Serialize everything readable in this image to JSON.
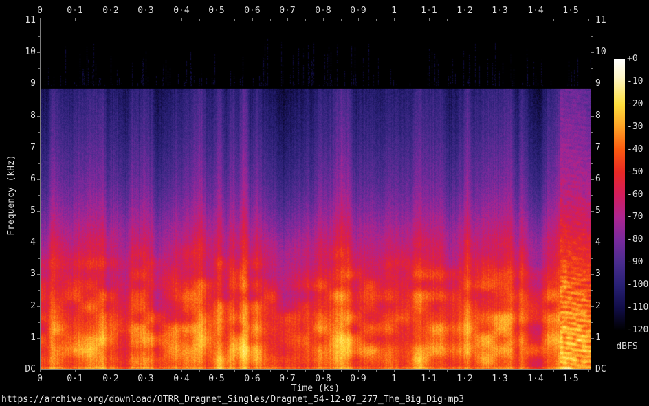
{
  "footer": {
    "url": "https://archive·org/download/OTRR_Dragnet_Singles/Dragnet_54-12-07_277_The_Big_Dig·mp3"
  },
  "chart_data": {
    "type": "heatmap",
    "subtype": "audio-spectrogram",
    "title": "https://archive·org/download/OTRR_Dragnet_Singles/Dragnet_54-12-07_277_The_Big_Dig·mp3",
    "xlabel": "Time (ks)",
    "ylabel": "Frequency (kHz)",
    "xlim": [
      0,
      1.558
    ],
    "ylim": [
      0,
      11
    ],
    "grid": false,
    "legend_position": "none",
    "x_major_ticks": {
      "start": 0,
      "step_ks": 0.1,
      "labels": [
        "0",
        "0·1",
        "0·2",
        "0·3",
        "0·4",
        "0·5",
        "0·6",
        "0·7",
        "0·8",
        "0·9",
        "1",
        "1·1",
        "1·2",
        "1·3",
        "1·4",
        "1·5"
      ],
      "shown_on": [
        "top",
        "bottom"
      ],
      "minor_step_ks": 0.05
    },
    "y_major_ticks": {
      "labels_top_to_bottom": [
        "11",
        "10",
        "9",
        "8",
        "7",
        "6",
        "5",
        "4",
        "3",
        "2",
        "1",
        "DC"
      ],
      "shown_on": [
        "left",
        "right"
      ],
      "minor_step_khz": 0.5
    },
    "colorbar": {
      "label": "dBFS",
      "max_db": 0,
      "min_db": -120,
      "tick_labels": [
        "+0",
        "-10",
        "-20",
        "-30",
        "-40",
        "-50",
        "-60",
        "-70",
        "-80",
        "-90",
        "-100",
        "-110",
        "-120"
      ],
      "palette_stops": [
        {
          "db": 0,
          "color": "#ffffff"
        },
        {
          "db": -8,
          "color": "#fff7c9"
        },
        {
          "db": -20,
          "color": "#ffdf3e"
        },
        {
          "db": -30,
          "color": "#ffa226"
        },
        {
          "db": -40,
          "color": "#fb5a10"
        },
        {
          "db": -50,
          "color": "#e92924"
        },
        {
          "db": -60,
          "color": "#d31d5c"
        },
        {
          "db": -70,
          "color": "#ad2590"
        },
        {
          "db": -80,
          "color": "#792a9d"
        },
        {
          "db": -90,
          "color": "#4a2c8e"
        },
        {
          "db": -100,
          "color": "#282075"
        },
        {
          "db": -110,
          "color": "#110d48"
        },
        {
          "db": -120,
          "color": "#000000"
        }
      ]
    },
    "content_model": {
      "comment": "Parameters describing the visible spectrogram content, used to regenerate the heatmap texture",
      "mp3_cutoff_khz": 8.87,
      "hiss_dash_band_khz": [
        8.95,
        10.45
      ],
      "music_outro_start_ks": 1.47,
      "bottom_dc_line_boost_db": 8,
      "freq_profile_db": [
        [
          0.0,
          -42
        ],
        [
          0.05,
          -40
        ],
        [
          0.3,
          -36
        ],
        [
          0.7,
          -36
        ],
        [
          1.0,
          -38
        ],
        [
          1.5,
          -41
        ],
        [
          2.0,
          -44
        ],
        [
          2.5,
          -48
        ],
        [
          3.0,
          -52
        ],
        [
          3.5,
          -57
        ],
        [
          4.0,
          -62
        ],
        [
          4.5,
          -68
        ],
        [
          5.0,
          -74
        ],
        [
          5.5,
          -79
        ],
        [
          6.0,
          -83
        ],
        [
          6.5,
          -86
        ],
        [
          7.0,
          -89
        ],
        [
          7.5,
          -92
        ],
        [
          8.0,
          -94
        ],
        [
          8.85,
          -98
        ]
      ],
      "column_dynamics_db": {
        "speech_swing": 9,
        "slow_swing": 6,
        "column_jitter": 6,
        "pause_drop_max": 70,
        "pixel_noise": 5,
        "low_freq_blob_boost": 10
      }
    },
    "axis_color": "#7d7d7d",
    "label_color": "#dcdcdc",
    "background_color": "#000000"
  }
}
